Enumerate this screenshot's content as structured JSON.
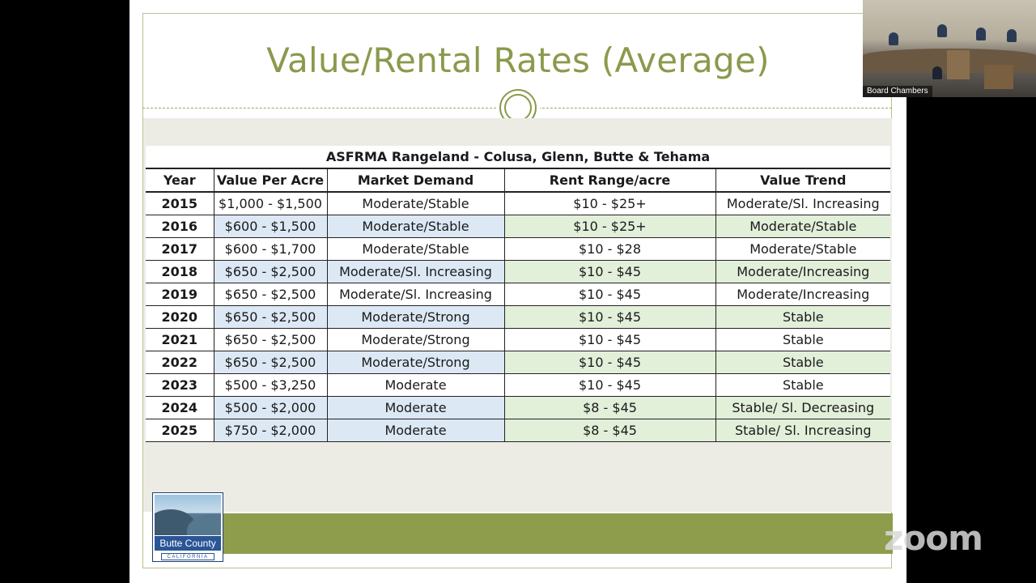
{
  "slide": {
    "title": "Value/Rental Rates (Average)",
    "table": {
      "caption": "ASFRMA Rangeland -  Colusa, Glenn, Butte & Tehama",
      "headers": [
        "Year",
        "Value Per Acre",
        "Market Demand",
        "Rent Range/acre",
        "Value Trend"
      ],
      "rows": [
        [
          "2015",
          "$1,000 - $1,500",
          "Moderate/Stable",
          "$10 - $25+",
          "Moderate/Sl. Increasing"
        ],
        [
          "2016",
          "$600 - $1,500",
          "Moderate/Stable",
          "$10 - $25+",
          "Moderate/Stable"
        ],
        [
          "2017",
          "$600 - $1,700",
          "Moderate/Stable",
          "$10 - $28",
          "Moderate/Stable"
        ],
        [
          "2018",
          "$650 - $2,500",
          "Moderate/Sl. Increasing",
          "$10 - $45",
          "Moderate/Increasing"
        ],
        [
          "2019",
          "$650 - $2,500",
          "Moderate/Sl. Increasing",
          "$10 - $45",
          "Moderate/Increasing"
        ],
        [
          "2020",
          "$650 - $2,500",
          "Moderate/Strong",
          "$10 - $45",
          "Stable"
        ],
        [
          "2021",
          "$650 - $2,500",
          "Moderate/Strong",
          "$10 - $45",
          "Stable"
        ],
        [
          "2022",
          "$650 - $2,500",
          "Moderate/Strong",
          "$10 - $45",
          "Stable"
        ],
        [
          "2023",
          "$500 - $3,250",
          "Moderate",
          "$10 - $45",
          "Stable"
        ],
        [
          "2024",
          "$500 - $2,000",
          "Moderate",
          "$8 - $45",
          "Stable/ Sl. Decreasing"
        ],
        [
          "2025",
          "$750 - $2,000",
          "Moderate",
          "$8 - $45",
          "Stable/ Sl. Increasing"
        ]
      ]
    },
    "logo": {
      "name": "Butte County",
      "state": "CALIFORNIA"
    }
  },
  "video": {
    "label": "Board Chambers"
  },
  "app": {
    "brand": "zoom"
  },
  "colors": {
    "title": "#8a9a4c",
    "band": "#8e9d4c",
    "row_blue": "#dce8f4",
    "row_green": "#e2efd9"
  }
}
